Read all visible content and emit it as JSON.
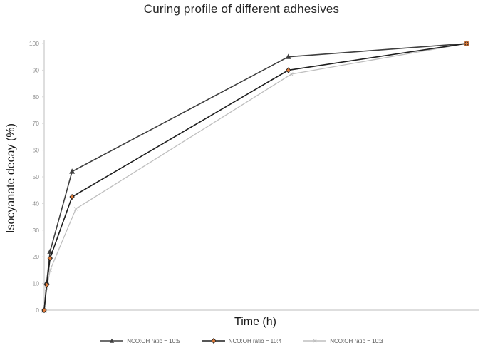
{
  "title": "Curing profile of different adhesives",
  "chart_data": {
    "type": "line",
    "title": "Curing profile of different adhesives",
    "xlabel": "Time (h)",
    "ylabel": "Isocyanate decay (%)",
    "ylim": [
      0,
      100
    ],
    "yticks": [
      0,
      10,
      20,
      30,
      40,
      50,
      60,
      70,
      80,
      90,
      100
    ],
    "x_encoding": "fraction of x-axis length (x axis shows no tick labels)",
    "grid": false,
    "legend_position": "bottom-center",
    "axis_color": "#d9d9d9",
    "tick_label_color": "#8c8c8c",
    "end_marker_color": "#e07b39",
    "series": [
      {
        "name": "NCO:OH ratio = 10:5",
        "color": "#3f3f3f",
        "marker": "triangle",
        "marker_fill": "#3f3f3f",
        "points": [
          [
            0,
            0
          ],
          [
            0.006,
            10.5
          ],
          [
            0.014,
            22
          ],
          [
            0.066,
            52
          ],
          [
            0.578,
            95
          ],
          [
            1,
            100
          ]
        ]
      },
      {
        "name": "NCO:OH ratio = 10:4",
        "color": "#1f1f1f",
        "marker": "diamond",
        "marker_fill": "#e07b39",
        "points": [
          [
            0,
            0
          ],
          [
            0.006,
            9.5
          ],
          [
            0.014,
            19.5
          ],
          [
            0.066,
            42.5
          ],
          [
            0.578,
            90
          ],
          [
            1,
            100
          ]
        ]
      },
      {
        "name": "NCO:OH ratio = 10:3",
        "color": "#bfbfbf",
        "marker": "x",
        "marker_fill": "#bfbfbf",
        "points": [
          [
            0,
            0
          ],
          [
            0.006,
            8
          ],
          [
            0.014,
            15
          ],
          [
            0.075,
            38
          ],
          [
            0.585,
            88.5
          ],
          [
            1,
            100
          ]
        ]
      }
    ]
  }
}
